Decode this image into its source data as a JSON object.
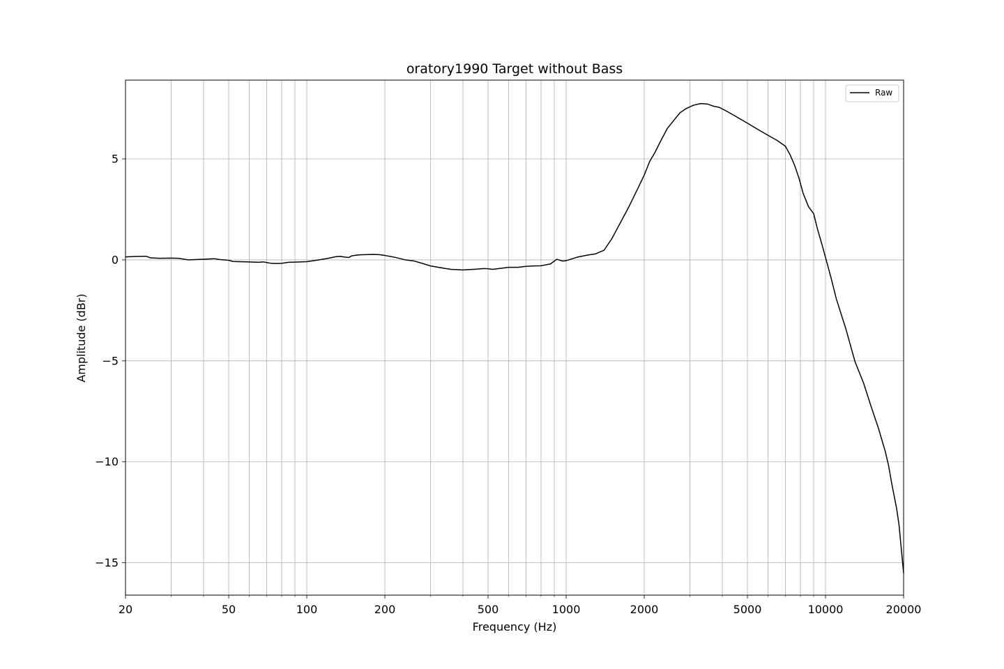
{
  "chart_data": {
    "type": "line",
    "title": "oratory1990 Target without Bass",
    "xlabel": "Frequency (Hz)",
    "ylabel": "Amplitude (dBr)",
    "xscale": "log",
    "xlim": [
      20,
      20000
    ],
    "ylim": [
      -16.6,
      8.9
    ],
    "grid": true,
    "legend_position": "top-right",
    "x_ticks": [
      {
        "value": 20,
        "label": "20"
      },
      {
        "value": 50,
        "label": "50"
      },
      {
        "value": 100,
        "label": "100"
      },
      {
        "value": 200,
        "label": "200"
      },
      {
        "value": 500,
        "label": "500"
      },
      {
        "value": 1000,
        "label": "1000"
      },
      {
        "value": 2000,
        "label": "2000"
      },
      {
        "value": 5000,
        "label": "5000"
      },
      {
        "value": 10000,
        "label": "10000"
      },
      {
        "value": 20000,
        "label": "20000"
      }
    ],
    "x_minor_gridlines": [
      30,
      40,
      60,
      70,
      80,
      90,
      300,
      400,
      600,
      700,
      800,
      900,
      3000,
      4000,
      6000,
      7000,
      8000,
      9000
    ],
    "y_ticks": [
      {
        "value": 5,
        "label": "5"
      },
      {
        "value": 0,
        "label": "0"
      },
      {
        "value": -5,
        "label": "−5"
      },
      {
        "value": -10,
        "label": "−10"
      },
      {
        "value": -15,
        "label": "−15"
      }
    ],
    "series": [
      {
        "name": "Raw",
        "color": "#000000",
        "points": [
          [
            20,
            0.15
          ],
          [
            22,
            0.17
          ],
          [
            24,
            0.18
          ],
          [
            25,
            0.1
          ],
          [
            27,
            0.08
          ],
          [
            30,
            0.09
          ],
          [
            32,
            0.08
          ],
          [
            35,
            0.0
          ],
          [
            40,
            0.03
          ],
          [
            44,
            0.06
          ],
          [
            46,
            0.02
          ],
          [
            50,
            -0.02
          ],
          [
            52,
            -0.08
          ],
          [
            55,
            -0.09
          ],
          [
            60,
            -0.1
          ],
          [
            65,
            -0.12
          ],
          [
            68,
            -0.1
          ],
          [
            72,
            -0.16
          ],
          [
            75,
            -0.18
          ],
          [
            80,
            -0.17
          ],
          [
            85,
            -0.12
          ],
          [
            90,
            -0.11
          ],
          [
            100,
            -0.09
          ],
          [
            110,
            -0.01
          ],
          [
            120,
            0.07
          ],
          [
            130,
            0.16
          ],
          [
            135,
            0.17
          ],
          [
            140,
            0.14
          ],
          [
            145,
            0.12
          ],
          [
            150,
            0.21
          ],
          [
            160,
            0.25
          ],
          [
            170,
            0.26
          ],
          [
            180,
            0.27
          ],
          [
            190,
            0.26
          ],
          [
            200,
            0.22
          ],
          [
            220,
            0.12
          ],
          [
            240,
            0.0
          ],
          [
            260,
            -0.06
          ],
          [
            280,
            -0.18
          ],
          [
            300,
            -0.3
          ],
          [
            340,
            -0.42
          ],
          [
            360,
            -0.47
          ],
          [
            400,
            -0.5
          ],
          [
            450,
            -0.46
          ],
          [
            480,
            -0.43
          ],
          [
            500,
            -0.44
          ],
          [
            520,
            -0.47
          ],
          [
            550,
            -0.43
          ],
          [
            600,
            -0.37
          ],
          [
            650,
            -0.37
          ],
          [
            700,
            -0.32
          ],
          [
            750,
            -0.3
          ],
          [
            800,
            -0.29
          ],
          [
            870,
            -0.2
          ],
          [
            920,
            0.03
          ],
          [
            970,
            -0.06
          ],
          [
            1000,
            -0.04
          ],
          [
            1100,
            0.13
          ],
          [
            1200,
            0.23
          ],
          [
            1300,
            0.3
          ],
          [
            1400,
            0.48
          ],
          [
            1500,
            1.05
          ],
          [
            1600,
            1.72
          ],
          [
            1750,
            2.66
          ],
          [
            1900,
            3.6
          ],
          [
            2000,
            4.2
          ],
          [
            2100,
            4.88
          ],
          [
            2200,
            5.32
          ],
          [
            2300,
            5.82
          ],
          [
            2450,
            6.49
          ],
          [
            2600,
            6.91
          ],
          [
            2750,
            7.29
          ],
          [
            2900,
            7.49
          ],
          [
            3100,
            7.66
          ],
          [
            3300,
            7.74
          ],
          [
            3500,
            7.72
          ],
          [
            3700,
            7.61
          ],
          [
            3900,
            7.55
          ],
          [
            4200,
            7.33
          ],
          [
            4500,
            7.11
          ],
          [
            5000,
            6.77
          ],
          [
            5500,
            6.45
          ],
          [
            6000,
            6.17
          ],
          [
            6500,
            5.92
          ],
          [
            7000,
            5.63
          ],
          [
            7300,
            5.21
          ],
          [
            7600,
            4.68
          ],
          [
            7900,
            4.05
          ],
          [
            8200,
            3.29
          ],
          [
            8600,
            2.63
          ],
          [
            9000,
            2.29
          ],
          [
            9300,
            1.55
          ],
          [
            9700,
            0.74
          ],
          [
            10000,
            0.12
          ],
          [
            10500,
            -0.88
          ],
          [
            11000,
            -1.92
          ],
          [
            12000,
            -3.45
          ],
          [
            13000,
            -5.05
          ],
          [
            14000,
            -6.08
          ],
          [
            15000,
            -7.27
          ],
          [
            16000,
            -8.34
          ],
          [
            17000,
            -9.49
          ],
          [
            17500,
            -10.18
          ],
          [
            18000,
            -11.07
          ],
          [
            18800,
            -12.31
          ],
          [
            19200,
            -13.11
          ],
          [
            20000,
            -15.52
          ]
        ]
      }
    ]
  }
}
